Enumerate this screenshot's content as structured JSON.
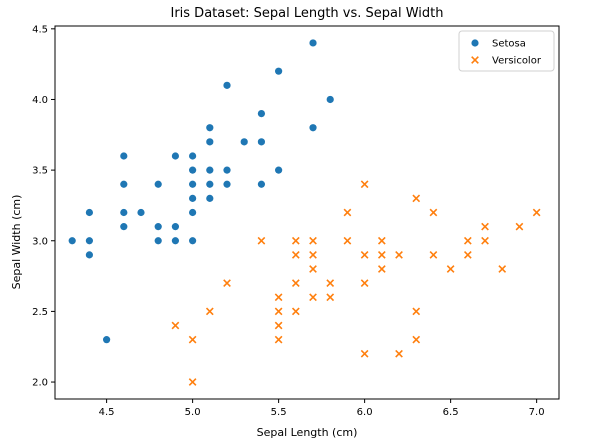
{
  "chart_data": {
    "type": "scatter",
    "title": "Iris Dataset: Sepal Length vs. Sepal Width",
    "xlabel": "Sepal Length (cm)",
    "ylabel": "Sepal Width (cm)",
    "xlim": [
      4.2,
      7.13
    ],
    "ylim": [
      1.88,
      4.52
    ],
    "xticks": [
      4.5,
      5.0,
      5.5,
      6.0,
      6.5,
      7.0
    ],
    "xtick_labels": [
      "4.5",
      "5.0",
      "5.5",
      "6.0",
      "6.5",
      "7.0"
    ],
    "yticks": [
      2.0,
      2.5,
      3.0,
      3.5,
      4.0,
      4.5
    ],
    "ytick_labels": [
      "2.0",
      "2.5",
      "3.0",
      "3.5",
      "4.0",
      "4.5"
    ],
    "grid": false,
    "legend_position": "top-right",
    "series": [
      {
        "name": "Setosa",
        "marker": "circle",
        "color": "#1f77b4",
        "points": [
          [
            4.3,
            3.0
          ],
          [
            4.4,
            2.9
          ],
          [
            4.4,
            3.0
          ],
          [
            4.4,
            3.2
          ],
          [
            4.5,
            2.3
          ],
          [
            4.6,
            3.1
          ],
          [
            4.6,
            3.2
          ],
          [
            4.6,
            3.4
          ],
          [
            4.6,
            3.6
          ],
          [
            4.7,
            3.2
          ],
          [
            4.8,
            3.0
          ],
          [
            4.8,
            3.1
          ],
          [
            4.8,
            3.4
          ],
          [
            4.9,
            3.0
          ],
          [
            4.9,
            3.1
          ],
          [
            4.9,
            3.6
          ],
          [
            5.0,
            3.0
          ],
          [
            5.0,
            3.2
          ],
          [
            5.0,
            3.3
          ],
          [
            5.0,
            3.4
          ],
          [
            5.0,
            3.5
          ],
          [
            5.0,
            3.6
          ],
          [
            5.1,
            3.3
          ],
          [
            5.1,
            3.4
          ],
          [
            5.1,
            3.5
          ],
          [
            5.1,
            3.7
          ],
          [
            5.1,
            3.8
          ],
          [
            5.2,
            3.4
          ],
          [
            5.2,
            3.5
          ],
          [
            5.2,
            4.1
          ],
          [
            5.3,
            3.7
          ],
          [
            5.4,
            3.4
          ],
          [
            5.4,
            3.7
          ],
          [
            5.4,
            3.9
          ],
          [
            5.5,
            3.5
          ],
          [
            5.5,
            4.2
          ],
          [
            5.7,
            3.8
          ],
          [
            5.7,
            4.4
          ],
          [
            5.8,
            4.0
          ]
        ]
      },
      {
        "name": "Versicolor",
        "marker": "x",
        "color": "#ff7f0e",
        "points": [
          [
            4.9,
            2.4
          ],
          [
            5.0,
            2.0
          ],
          [
            5.0,
            2.3
          ],
          [
            5.1,
            2.5
          ],
          [
            5.2,
            2.7
          ],
          [
            5.4,
            3.0
          ],
          [
            5.5,
            2.3
          ],
          [
            5.5,
            2.4
          ],
          [
            5.5,
            2.5
          ],
          [
            5.5,
            2.6
          ],
          [
            5.6,
            2.5
          ],
          [
            5.6,
            2.7
          ],
          [
            5.6,
            2.9
          ],
          [
            5.6,
            3.0
          ],
          [
            5.7,
            2.6
          ],
          [
            5.7,
            2.8
          ],
          [
            5.7,
            2.9
          ],
          [
            5.7,
            3.0
          ],
          [
            5.8,
            2.6
          ],
          [
            5.8,
            2.7
          ],
          [
            5.9,
            3.0
          ],
          [
            5.9,
            3.2
          ],
          [
            6.0,
            2.2
          ],
          [
            6.0,
            2.7
          ],
          [
            6.0,
            2.9
          ],
          [
            6.0,
            3.4
          ],
          [
            6.1,
            2.8
          ],
          [
            6.1,
            2.9
          ],
          [
            6.1,
            3.0
          ],
          [
            6.2,
            2.2
          ],
          [
            6.2,
            2.9
          ],
          [
            6.3,
            2.3
          ],
          [
            6.3,
            2.5
          ],
          [
            6.3,
            3.3
          ],
          [
            6.4,
            2.9
          ],
          [
            6.4,
            3.2
          ],
          [
            6.5,
            2.8
          ],
          [
            6.6,
            2.9
          ],
          [
            6.6,
            3.0
          ],
          [
            6.7,
            3.0
          ],
          [
            6.7,
            3.1
          ],
          [
            6.8,
            2.8
          ],
          [
            6.9,
            3.1
          ],
          [
            7.0,
            3.2
          ]
        ]
      }
    ]
  }
}
